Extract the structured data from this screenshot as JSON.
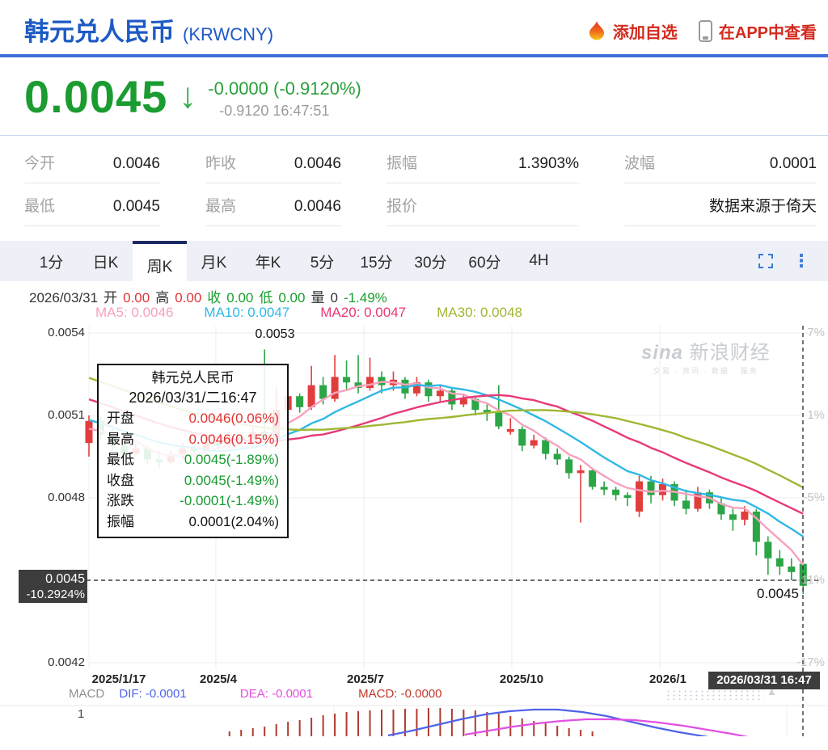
{
  "header": {
    "title": "韩元兑人民币",
    "code": "(KRWCNY)",
    "add_watchlist": "添加自选",
    "view_in_app": "在APP中查看"
  },
  "price": {
    "value": "0.0045",
    "direction": "down",
    "arrow": "↓",
    "change": "-0.0000 (-0.9120%)",
    "change_detail": "-0.9120 16:47:51"
  },
  "stats": {
    "rows": [
      [
        {
          "label": "今开",
          "value": "0.0046"
        },
        {
          "label": "昨收",
          "value": "0.0046"
        },
        {
          "label": "振幅",
          "value": "1.3903%"
        },
        {
          "label": "波幅",
          "value": "0.0001"
        }
      ],
      [
        {
          "label": "最低",
          "value": "0.0045"
        },
        {
          "label": "最高",
          "value": "0.0046"
        },
        {
          "label": "报价",
          "value": ""
        },
        {
          "label": "",
          "value": "数据来源于倚天"
        }
      ]
    ]
  },
  "tabs": {
    "items": [
      "1分",
      "日K",
      "周K",
      "月K",
      "年K",
      "5分",
      "15分",
      "30分",
      "60分",
      "4H"
    ],
    "active": "周K"
  },
  "info_bar": {
    "segments": [
      {
        "text": "2026/03/31",
        "color": "#333333"
      },
      {
        "text": "开",
        "color": "#333333"
      },
      {
        "text": "0.00",
        "color": "#e03434"
      },
      {
        "text": "高",
        "color": "#333333"
      },
      {
        "text": "0.00",
        "color": "#e03434"
      },
      {
        "text": "收",
        "color": "#18a02c"
      },
      {
        "text": "0.00",
        "color": "#18a02c"
      },
      {
        "text": "低",
        "color": "#18a02c"
      },
      {
        "text": "0.00",
        "color": "#18a02c"
      },
      {
        "text": "量",
        "color": "#333333"
      },
      {
        "text": "0",
        "color": "#333333"
      },
      {
        "text": "-1.49%",
        "color": "#18a02c"
      }
    ]
  },
  "ma_legend": [
    {
      "label": "MA5: 0.0046",
      "color": "#f7a1bd"
    },
    {
      "label": "MA10: 0.0047",
      "color": "#2fb8e6"
    },
    {
      "label": "MA20: 0.0047",
      "color": "#e8397a"
    },
    {
      "label": "MA30: 0.0048",
      "color": "#9fb832"
    }
  ],
  "tooltip": {
    "title": "韩元兑人民币",
    "date": "2026/03/31/二16:47",
    "rows": [
      {
        "label": "开盘",
        "value": "0.0046(0.06%)",
        "color": "#e03434"
      },
      {
        "label": "最高",
        "value": "0.0046(0.15%)",
        "color": "#e03434"
      },
      {
        "label": "最低",
        "value": "0.0045(-1.89%)",
        "color": "#169b2f"
      },
      {
        "label": "收盘",
        "value": "0.0045(-1.49%)",
        "color": "#169b2f"
      },
      {
        "label": "涨跌",
        "value": "-0.0001(-1.49%)",
        "color": "#169b2f"
      },
      {
        "label": "振幅",
        "value": "0.0001(2.04%)",
        "color": "#111111"
      }
    ]
  },
  "watermark": {
    "brand": "sina",
    "name": "新浪财经",
    "slogan": "交易 · 资讯 · 数据 · 服务"
  },
  "chart_data": {
    "type": "candlestick",
    "title": "韩元兑人民币 周K",
    "unit": 1e-05,
    "y_axis_left": {
      "labels": [
        "0.0054",
        "0.0051",
        "0.0048",
        "0.0042"
      ],
      "range": [
        0.0042,
        0.0054
      ]
    },
    "y_axis_right": {
      "labels": [
        "7%",
        "1%",
        "-5%",
        "-11%",
        "-17%"
      ],
      "range": [
        -17,
        7
      ]
    },
    "x_axis": {
      "labels": [
        "2025/1/17",
        "2025/4",
        "2025/7",
        "2025/10",
        "2026/1"
      ]
    },
    "grid": true,
    "high_label": "0.0053",
    "last_label": "0.0045",
    "crosshair": {
      "price": "0.0045",
      "pct": "-10.2924%",
      "time": "2026/03/31 16:47"
    },
    "up_color": "#e23d3d",
    "down_color": "#2ba546",
    "candles": [
      [
        500,
        510,
        495,
        508
      ],
      [
        508,
        509,
        501,
        503
      ],
      [
        503,
        505,
        497,
        499
      ],
      [
        499,
        501,
        494,
        496
      ],
      [
        496,
        500,
        495,
        498
      ],
      [
        498,
        499,
        492,
        494
      ],
      [
        494,
        497,
        491,
        493
      ],
      [
        493,
        497,
        492,
        496
      ],
      [
        496,
        500,
        494,
        498
      ],
      [
        498,
        499,
        495,
        497
      ],
      [
        497,
        502,
        496,
        500
      ],
      [
        500,
        502,
        497,
        499
      ],
      [
        499,
        504,
        498,
        502
      ],
      [
        502,
        503,
        499,
        501
      ],
      [
        501,
        506,
        500,
        504
      ],
      [
        504,
        534,
        500,
        502
      ],
      [
        502,
        520,
        501,
        512
      ],
      [
        512,
        519,
        508,
        517
      ],
      [
        517,
        518,
        511,
        513
      ],
      [
        513,
        528,
        512,
        521
      ],
      [
        521,
        524,
        514,
        516
      ],
      [
        516,
        532,
        515,
        524
      ],
      [
        524,
        530,
        519,
        522
      ],
      [
        522,
        532,
        518,
        520
      ],
      [
        520,
        531,
        519,
        524
      ],
      [
        524,
        526,
        518,
        521
      ],
      [
        521,
        526,
        519,
        523
      ],
      [
        523,
        524,
        516,
        518
      ],
      [
        518,
        524,
        517,
        522
      ],
      [
        522,
        523,
        515,
        517
      ],
      [
        517,
        521,
        515,
        519
      ],
      [
        519,
        520,
        512,
        514
      ],
      [
        514,
        518,
        513,
        516
      ],
      [
        516,
        517,
        510,
        512
      ],
      [
        512,
        514,
        508,
        511
      ],
      [
        511,
        521,
        505,
        506
      ],
      [
        504,
        509,
        503,
        505
      ],
      [
        505,
        506,
        497,
        499
      ],
      [
        499,
        503,
        498,
        501
      ],
      [
        501,
        502,
        494,
        496
      ],
      [
        496,
        498,
        492,
        494
      ],
      [
        494,
        495,
        487,
        489
      ],
      [
        489,
        492,
        471,
        490
      ],
      [
        490,
        491,
        483,
        484
      ],
      [
        484,
        486,
        481,
        483
      ],
      [
        483,
        484,
        479,
        481
      ],
      [
        481,
        482,
        477,
        480
      ],
      [
        475,
        488,
        473,
        486
      ],
      [
        486,
        488,
        478,
        481
      ],
      [
        481,
        487,
        479,
        485
      ],
      [
        485,
        486,
        477,
        479
      ],
      [
        479,
        483,
        474,
        476
      ],
      [
        476,
        484,
        475,
        482
      ],
      [
        482,
        483,
        476,
        478
      ],
      [
        478,
        480,
        472,
        474
      ],
      [
        474,
        476,
        468,
        472
      ],
      [
        472,
        477,
        470,
        475
      ],
      [
        475,
        476,
        459,
        464
      ],
      [
        464,
        466,
        452,
        458
      ],
      [
        458,
        461,
        452,
        455
      ],
      [
        455,
        458,
        450,
        453
      ],
      [
        456,
        456,
        445,
        448
      ]
    ],
    "ma_windows": [
      5,
      10,
      20,
      30
    ],
    "ma_colors": [
      "#f7a1bd",
      "#2fb8e6",
      "#e8397a",
      "#9fb832"
    ]
  },
  "macd": {
    "name": "MACD",
    "dif_label": "DIF: -0.0001",
    "dea_label": "DEA: -0.0001",
    "macd_label": "MACD: -0.0000",
    "scale_label": "1",
    "name_color": "#909090",
    "dif_color": "#4f63e8",
    "dea_color": "#e24fe2",
    "macd_color": "#c0392b",
    "hist_start_index": 12,
    "hist_profile": [
      6,
      8,
      10,
      12,
      15,
      18,
      20,
      23,
      26,
      28,
      30,
      31,
      32,
      33,
      33,
      34,
      34,
      35,
      35,
      34,
      33,
      32,
      30,
      28,
      25,
      22,
      19,
      16,
      13,
      10,
      8,
      6
    ],
    "dif_points": [
      [
        480,
        562
      ],
      [
        510,
        556
      ],
      [
        540,
        549
      ],
      [
        570,
        542
      ],
      [
        600,
        536
      ],
      [
        630,
        532
      ],
      [
        660,
        530
      ],
      [
        690,
        530
      ],
      [
        720,
        533
      ],
      [
        750,
        538
      ],
      [
        780,
        545
      ],
      [
        810,
        552
      ],
      [
        840,
        558
      ],
      [
        870,
        563
      ],
      [
        900,
        568
      ]
    ],
    "dea_points": [
      [
        575,
        561
      ],
      [
        605,
        556
      ],
      [
        635,
        551
      ],
      [
        665,
        547
      ],
      [
        695,
        544
      ],
      [
        725,
        542
      ],
      [
        755,
        542
      ],
      [
        785,
        543
      ],
      [
        815,
        546
      ],
      [
        845,
        550
      ],
      [
        875,
        555
      ],
      [
        905,
        560
      ],
      [
        935,
        566
      ]
    ]
  }
}
